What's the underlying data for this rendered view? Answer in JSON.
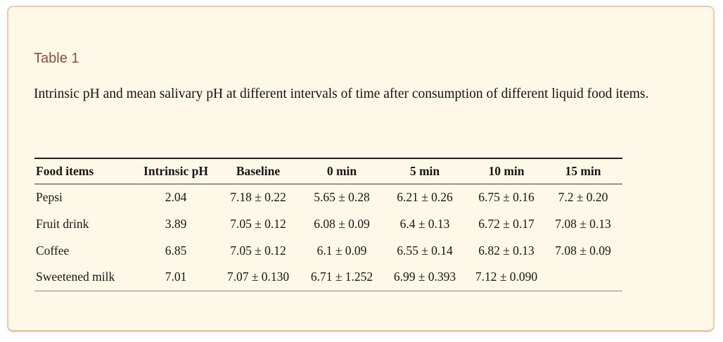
{
  "title": "Table 1",
  "caption": "Intrinsic pH and mean salivary pH at different intervals of time after consumption of different liquid food items.",
  "colors": {
    "panel_background": "#fdf8e7",
    "panel_border": "#f1c6ac",
    "title_text": "#8b4d3a",
    "body_text": "#161616"
  },
  "table": {
    "columns": [
      "Food items",
      "Intrinsic pH",
      "Baseline",
      "0 min",
      "5 min",
      "10 min",
      "15 min"
    ],
    "rows": [
      [
        "Pepsi",
        "2.04",
        "7.18 ± 0.22",
        "5.65 ± 0.28",
        "6.21 ± 0.26",
        "6.75 ± 0.16",
        "7.2 ± 0.20"
      ],
      [
        "Fruit drink",
        "3.89",
        "7.05 ± 0.12",
        "6.08 ± 0.09",
        "6.4 ± 0.13",
        "6.72 ± 0.17",
        "7.08 ± 0.13"
      ],
      [
        "Coffee",
        "6.85",
        "7.05 ± 0.12",
        "6.1 ± 0.09",
        "6.55 ± 0.14",
        "6.82 ± 0.13",
        "7.08 ± 0.09"
      ],
      [
        "Sweetened milk",
        "7.01",
        "7.07 ± 0.130",
        "6.71 ± 1.252",
        "6.99 ± 0.393",
        "7.12 ± 0.090",
        ""
      ]
    ]
  },
  "chart_data": {
    "type": "table",
    "title": "Table 1",
    "caption": "Intrinsic pH and mean salivary pH at different intervals of time after consumption of different liquid food items.",
    "columns": [
      "Food items",
      "Intrinsic pH",
      "Baseline",
      "0 min",
      "5 min",
      "10 min",
      "15 min"
    ],
    "rows": [
      {
        "food_item": "Pepsi",
        "intrinsic_ph": 2.04,
        "baseline": "7.18 ± 0.22",
        "min_0": "5.65 ± 0.28",
        "min_5": "6.21 ± 0.26",
        "min_10": "6.75 ± 0.16",
        "min_15": "7.2 ± 0.20"
      },
      {
        "food_item": "Fruit drink",
        "intrinsic_ph": 3.89,
        "baseline": "7.05 ± 0.12",
        "min_0": "6.08 ± 0.09",
        "min_5": "6.4 ± 0.13",
        "min_10": "6.72 ± 0.17",
        "min_15": "7.08 ± 0.13"
      },
      {
        "food_item": "Coffee",
        "intrinsic_ph": 6.85,
        "baseline": "7.05 ± 0.12",
        "min_0": "6.1 ± 0.09",
        "min_5": "6.55 ± 0.14",
        "min_10": "6.82 ± 0.13",
        "min_15": "7.08 ± 0.09"
      },
      {
        "food_item": "Sweetened milk",
        "intrinsic_ph": 7.01,
        "baseline": "7.07 ± 0.130",
        "min_0": "6.71 ± 1.252",
        "min_5": "6.99 ± 0.393",
        "min_10": "7.12 ± 0.090",
        "min_15": ""
      }
    ]
  }
}
